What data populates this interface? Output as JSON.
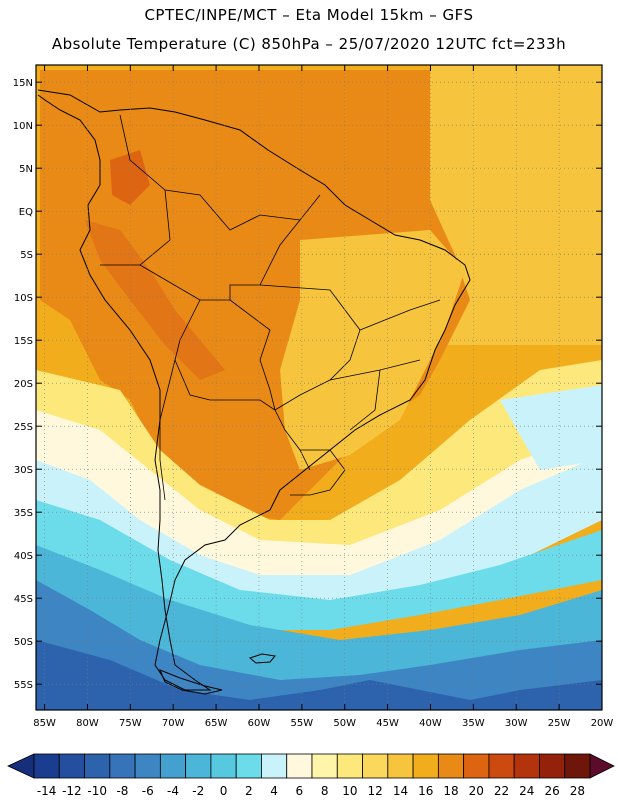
{
  "header": {
    "line1": "CPTEC/INPE/MCT –  Eta Model 15km – GFS",
    "line2": "Absolute Temperature (C) 850hPa – 25/07/2020 12UTC fct=233h"
  },
  "map": {
    "lat_range": [
      -58,
      17
    ],
    "lon_range": [
      -86,
      -20
    ],
    "lat_labels": [
      "15N",
      "10N",
      "5N",
      "EQ",
      "5S",
      "10S",
      "15S",
      "20S",
      "25S",
      "30S",
      "35S",
      "40S",
      "45S",
      "50S",
      "55S"
    ],
    "lat_values": [
      15,
      10,
      5,
      0,
      -5,
      -10,
      -15,
      -20,
      -25,
      -30,
      -35,
      -40,
      -45,
      -50,
      -55
    ],
    "lon_labels": [
      "85W",
      "80W",
      "75W",
      "70W",
      "65W",
      "60W",
      "55W",
      "50W",
      "45W",
      "40W",
      "35W",
      "30W",
      "25W",
      "20W"
    ],
    "lon_values": [
      -85,
      -80,
      -75,
      -70,
      -65,
      -60,
      -55,
      -50,
      -45,
      -40,
      -35,
      -30,
      -25,
      -20
    ]
  },
  "colorbar": {
    "labels": [
      "-14",
      "-12",
      "-10",
      "-8",
      "-6",
      "-4",
      "-2",
      "0",
      "2",
      "4",
      "6",
      "8",
      "10",
      "12",
      "14",
      "16",
      "18",
      "20",
      "22",
      "24",
      "26",
      "28"
    ],
    "colors": [
      "#1b3d8f",
      "#244f9e",
      "#2d62ad",
      "#3673b9",
      "#3d86c3",
      "#44a0cf",
      "#4bb6d8",
      "#56c8e0",
      "#6cdcea",
      "#c9f2fa",
      "#fff8dc",
      "#fff5a8",
      "#fde87c",
      "#fbd75b",
      "#f6c43d",
      "#f2ad1d",
      "#e98a17",
      "#dd6512",
      "#cc4a0f",
      "#b3330c",
      "#94220b",
      "#6f160a"
    ],
    "under_color": "#172e7a",
    "over_color": "#5a0c2a"
  }
}
